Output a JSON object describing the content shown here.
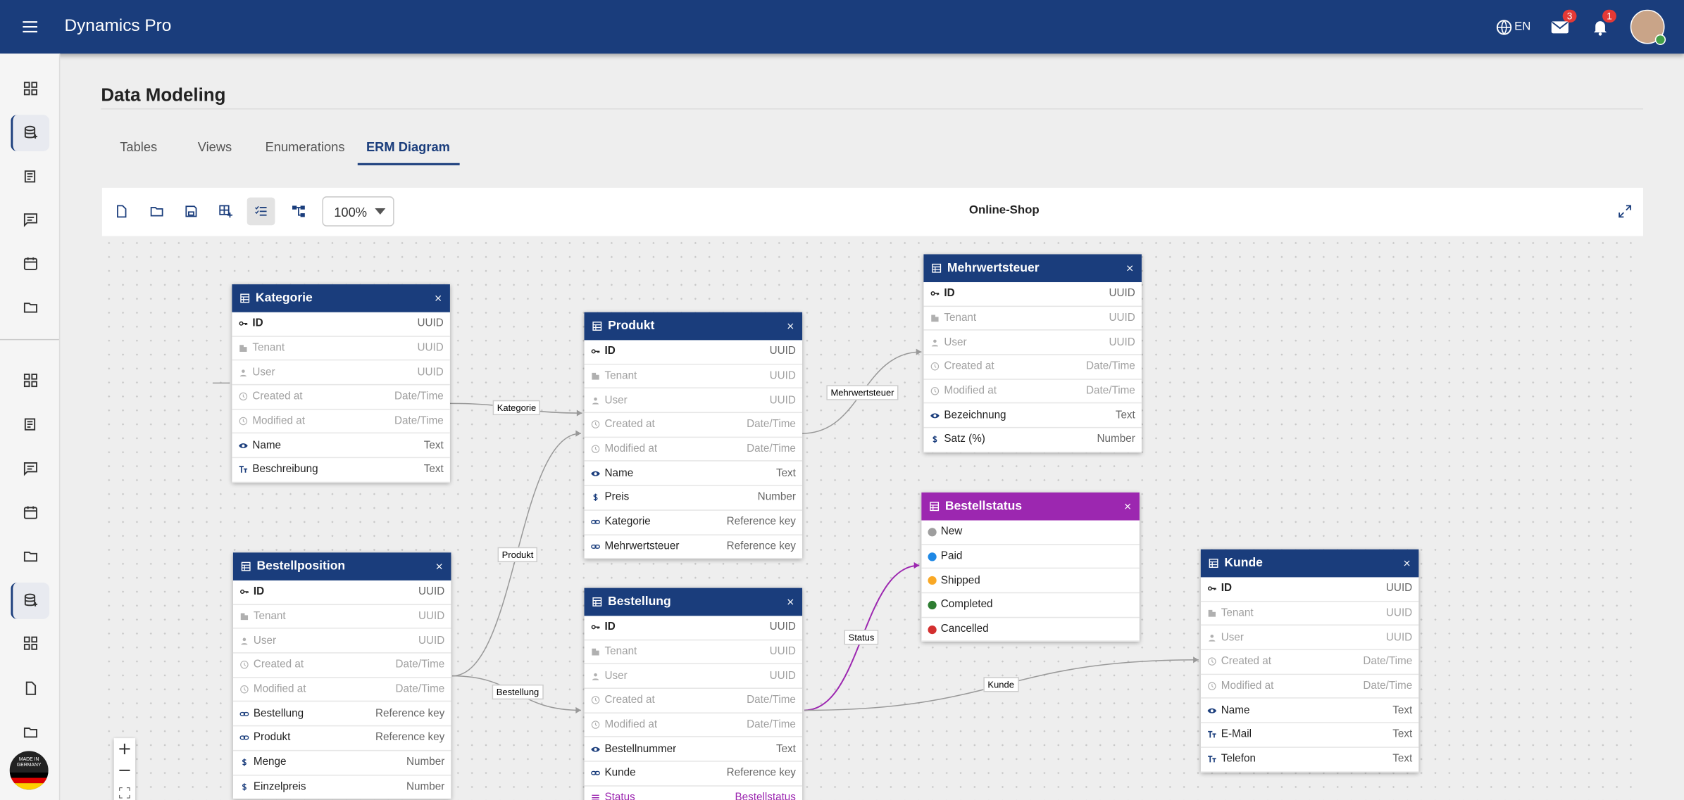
{
  "header": {
    "app_title": "Dynamics Pro",
    "language": "EN",
    "mail_badge": "3",
    "notification_badge": "1"
  },
  "page": {
    "title": "Data Modeling",
    "tabs": [
      "Tables",
      "Views",
      "Enumerations",
      "ERM Diagram"
    ],
    "active_tab": 3
  },
  "toolbar": {
    "zoom": "100%",
    "diagram_name": "Online-Shop"
  },
  "tables": [
    {
      "name": "Kategorie",
      "fields": [
        {
          "name": "ID",
          "type": "UUID"
        },
        {
          "name": "Tenant",
          "type": "UUID"
        },
        {
          "name": "User",
          "type": "UUID"
        },
        {
          "name": "Created at",
          "type": "Date/Time"
        },
        {
          "name": "Modified at",
          "type": "Date/Time"
        },
        {
          "name": "Name",
          "type": "Text"
        },
        {
          "name": "Beschreibung",
          "type": "Text"
        }
      ]
    },
    {
      "name": "Produkt",
      "fields": [
        {
          "name": "ID",
          "type": "UUID"
        },
        {
          "name": "Tenant",
          "type": "UUID"
        },
        {
          "name": "User",
          "type": "UUID"
        },
        {
          "name": "Created at",
          "type": "Date/Time"
        },
        {
          "name": "Modified at",
          "type": "Date/Time"
        },
        {
          "name": "Name",
          "type": "Text"
        },
        {
          "name": "Preis",
          "type": "Number"
        },
        {
          "name": "Kategorie",
          "type": "Reference key"
        },
        {
          "name": "Mehrwertsteuer",
          "type": "Reference key"
        }
      ]
    },
    {
      "name": "Mehrwertsteuer",
      "fields": [
        {
          "name": "ID",
          "type": "UUID"
        },
        {
          "name": "Tenant",
          "type": "UUID"
        },
        {
          "name": "User",
          "type": "UUID"
        },
        {
          "name": "Created at",
          "type": "Date/Time"
        },
        {
          "name": "Modified at",
          "type": "Date/Time"
        },
        {
          "name": "Bezeichnung",
          "type": "Text"
        },
        {
          "name": "Satz (%)",
          "type": "Number"
        }
      ]
    },
    {
      "name": "Bestellposition",
      "fields": [
        {
          "name": "ID",
          "type": "UUID"
        },
        {
          "name": "Tenant",
          "type": "UUID"
        },
        {
          "name": "User",
          "type": "UUID"
        },
        {
          "name": "Created at",
          "type": "Date/Time"
        },
        {
          "name": "Modified at",
          "type": "Date/Time"
        },
        {
          "name": "Bestellung",
          "type": "Reference key"
        },
        {
          "name": "Produkt",
          "type": "Reference key"
        },
        {
          "name": "Menge",
          "type": "Number"
        },
        {
          "name": "Einzelpreis",
          "type": "Number"
        }
      ]
    },
    {
      "name": "Bestellung",
      "fields": [
        {
          "name": "ID",
          "type": "UUID"
        },
        {
          "name": "Tenant",
          "type": "UUID"
        },
        {
          "name": "User",
          "type": "UUID"
        },
        {
          "name": "Created at",
          "type": "Date/Time"
        },
        {
          "name": "Modified at",
          "type": "Date/Time"
        },
        {
          "name": "Bestellnummer",
          "type": "Text"
        },
        {
          "name": "Kunde",
          "type": "Reference key"
        },
        {
          "name": "Status",
          "type": "Bestellstatus"
        }
      ]
    },
    {
      "name": "Kunde",
      "fields": [
        {
          "name": "ID",
          "type": "UUID"
        },
        {
          "name": "Tenant",
          "type": "UUID"
        },
        {
          "name": "User",
          "type": "UUID"
        },
        {
          "name": "Created at",
          "type": "Date/Time"
        },
        {
          "name": "Modified at",
          "type": "Date/Time"
        },
        {
          "name": "Name",
          "type": "Text"
        },
        {
          "name": "E-Mail",
          "type": "Text"
        },
        {
          "name": "Telefon",
          "type": "Text"
        }
      ]
    }
  ],
  "enums": [
    {
      "name": "Bestellstatus",
      "values": [
        {
          "label": "New",
          "color": "#9e9e9e"
        },
        {
          "label": "Paid",
          "color": "#1e88e5"
        },
        {
          "label": "Shipped",
          "color": "#f9a825"
        },
        {
          "label": "Completed",
          "color": "#2e7d32"
        },
        {
          "label": "Cancelled",
          "color": "#d32f2f"
        }
      ]
    }
  ],
  "relations": [
    {
      "label": "Kategorie"
    },
    {
      "label": "Mehrwertsteuer"
    },
    {
      "label": "Produkt"
    },
    {
      "label": "Bestellung"
    },
    {
      "label": "Status"
    },
    {
      "label": "Kunde"
    }
  ],
  "badge": {
    "label": "MADE IN GERMANY"
  }
}
